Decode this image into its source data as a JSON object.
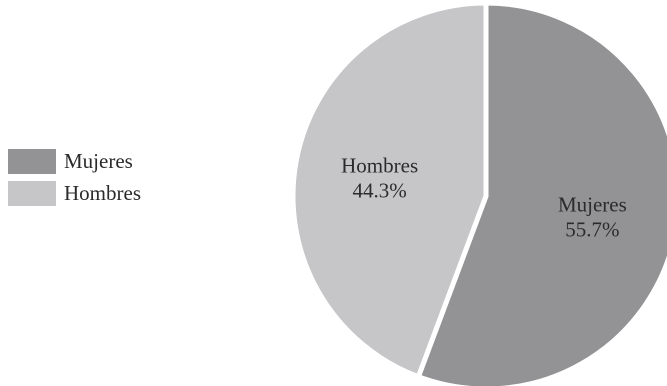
{
  "chart_data": {
    "type": "pie",
    "title": "",
    "slices": [
      {
        "label": "Mujeres",
        "value": 55.7,
        "display": "55.7%",
        "color": "#939396"
      },
      {
        "label": "Hombres",
        "value": 44.3,
        "display": "44.3%",
        "color": "#c6c6c8"
      }
    ],
    "start_angle": "12 o'clock",
    "direction": "clockwise",
    "legend": {
      "position": "left",
      "items": [
        "Mujeres",
        "Hombres"
      ]
    }
  }
}
